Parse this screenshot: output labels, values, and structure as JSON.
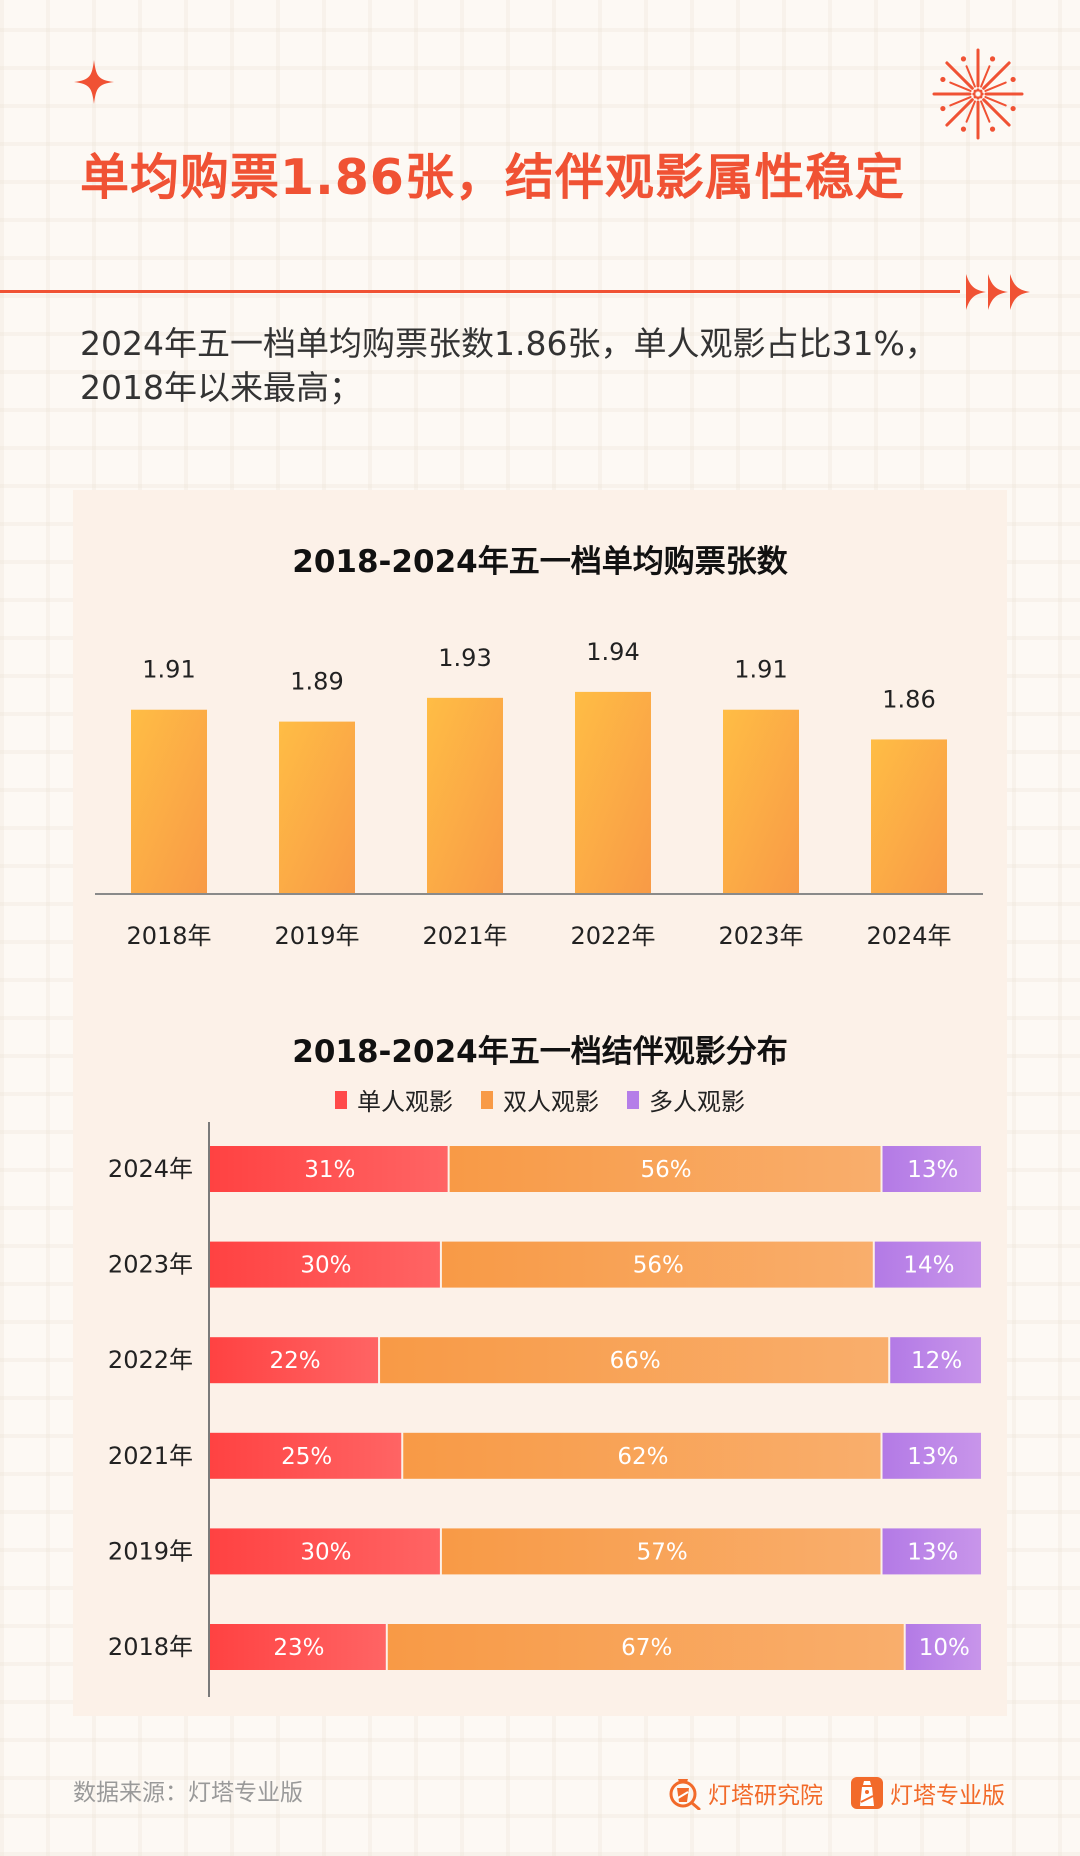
{
  "header": {
    "headline": "单均购票1.86张，结伴观影属性稳定",
    "summary": "2024年五一档单均购票张数1.86张，单人观影占比31%，2018年以来最高；"
  },
  "colors": {
    "accent": "#f05234",
    "bar_gradient": [
      "#ffbd45",
      "#f89a46"
    ],
    "solo": "#ff4a4a",
    "pair": "#f89a46",
    "group": "#b57ee8",
    "panel": "#fcf1e8"
  },
  "icons": {
    "sparkle": "four-point-star-icon",
    "firework": "firework-icon",
    "arrows": "triple-arrow-icon",
    "brand1": "lighthouse-magnifier-icon",
    "brand2": "lighthouse-app-icon"
  },
  "footer": {
    "source": "数据来源：灯塔专业版",
    "brand1": "灯塔研究院",
    "brand2": "灯塔专业版"
  },
  "chart_data": [
    {
      "type": "bar",
      "title": "2018-2024年五一档单均购票张数",
      "categories": [
        "2018年",
        "2019年",
        "2021年",
        "2022年",
        "2023年",
        "2024年"
      ],
      "values": [
        1.91,
        1.89,
        1.93,
        1.94,
        1.91,
        1.86
      ],
      "data_labels": [
        "1.91",
        "1.89",
        "1.93",
        "1.94",
        "1.91",
        "1.86"
      ],
      "xlabel": "",
      "ylabel": "",
      "ylim": [
        1.6,
        1.96
      ],
      "grid": false
    },
    {
      "type": "bar",
      "orientation": "horizontal-stacked-100",
      "title": "2018-2024年五一档结伴观影分布",
      "legend_position": "top-center",
      "categories": [
        "2024年",
        "2023年",
        "2022年",
        "2021年",
        "2019年",
        "2018年"
      ],
      "series": [
        {
          "name": "单人观影",
          "values": [
            31,
            30,
            22,
            25,
            30,
            23
          ]
        },
        {
          "name": "双人观影",
          "values": [
            56,
            56,
            66,
            62,
            57,
            67
          ]
        },
        {
          "name": "多人观影",
          "values": [
            13,
            14,
            12,
            13,
            13,
            10
          ]
        }
      ],
      "unit": "%",
      "xlim": [
        0,
        100
      ],
      "grid": false
    }
  ]
}
